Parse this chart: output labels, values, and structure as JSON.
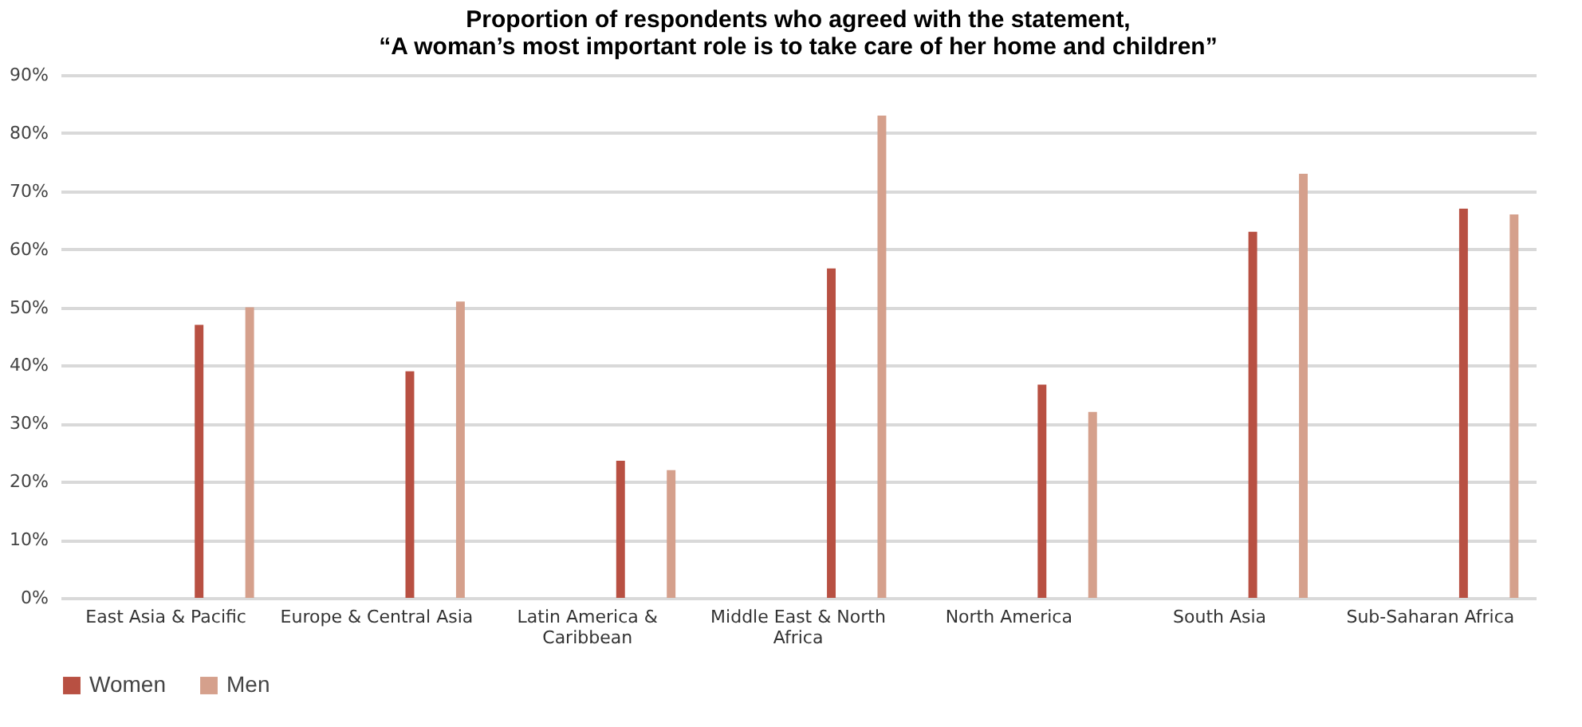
{
  "chart_data": {
    "type": "bar",
    "title": "Proportion of respondents who agreed with the statement,",
    "subtitle": "“A woman’s most important role is to take care of her home and children”",
    "categories": [
      "East Asia & Pacific",
      "Europe & Central Asia",
      "Latin America & Caribbean",
      "Middle East & North Africa",
      "North America",
      "South Asia",
      "Sub-Saharan Africa"
    ],
    "series": [
      {
        "name": "Women",
        "color": "#b85042",
        "values": [
          47,
          39,
          23.6,
          56.7,
          36.7,
          63,
          67
        ]
      },
      {
        "name": "Men",
        "color": "#d5a08c",
        "values": [
          50,
          51,
          22,
          83,
          32,
          73,
          66
        ]
      }
    ],
    "ylim": [
      0,
      90
    ],
    "yticks": [
      {
        "value": 0,
        "label": "0%"
      },
      {
        "value": 10,
        "label": "10%"
      },
      {
        "value": 20,
        "label": "20%"
      },
      {
        "value": 30,
        "label": "30%"
      },
      {
        "value": 40,
        "label": "40%"
      },
      {
        "value": 50,
        "label": "50%"
      },
      {
        "value": 60,
        "label": "60%"
      },
      {
        "value": 70,
        "label": "70%"
      },
      {
        "value": 80,
        "label": "80%"
      },
      {
        "value": 90,
        "label": "90%"
      }
    ],
    "grid": "y",
    "legend": "bottom"
  }
}
